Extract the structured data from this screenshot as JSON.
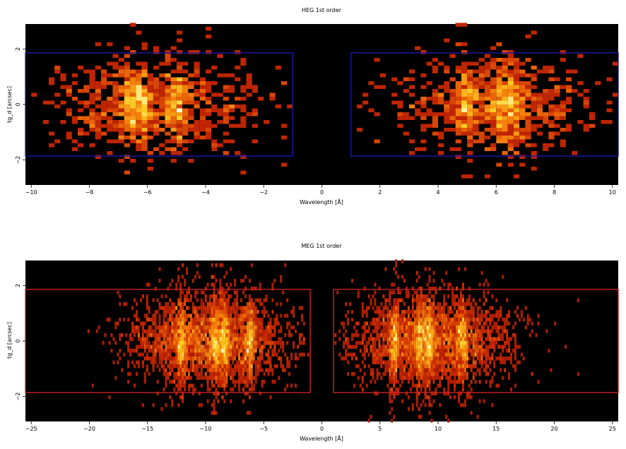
{
  "chart_data": [
    {
      "type": "heatmap",
      "title": "HEG 1st order",
      "xlabel": "Wavelength [Å]",
      "ylabel": "tg_d [arcsec]",
      "xlim": [
        -10.2,
        10.2
      ],
      "ylim": [
        -2.9,
        2.9
      ],
      "xticks": [
        -10,
        -8,
        -6,
        -4,
        -2,
        0,
        2,
        4,
        6,
        8,
        10
      ],
      "yticks": [
        -2,
        0,
        2
      ],
      "grid": false,
      "background": "#000000",
      "region_color": "#1a1aa8",
      "regions": [
        {
          "x": [
            -10.2,
            -1.0
          ],
          "y": [
            -1.86,
            1.86
          ]
        },
        {
          "x": [
            1.0,
            10.2
          ],
          "y": [
            -1.86,
            1.86
          ]
        }
      ],
      "emission_lines": [
        -6.6,
        -6.2,
        -5.0,
        6.6,
        6.2,
        5.0
      ],
      "bin": [
        0.2,
        0.14
      ]
    },
    {
      "type": "heatmap",
      "title": "MEG 1st order",
      "xlabel": "Wavelength [Å]",
      "ylabel": "tg_d [arcsec]",
      "xlim": [
        -25.5,
        25.5
      ],
      "ylim": [
        -2.9,
        2.9
      ],
      "xticks": [
        -25,
        -20,
        -15,
        -10,
        -5,
        0,
        5,
        10,
        15,
        20,
        25
      ],
      "yticks": [
        -2,
        0,
        2
      ],
      "grid": false,
      "background": "#000000",
      "region_color": "#cc2222",
      "regions": [
        {
          "x": [
            -25.5,
            -1.0
          ],
          "y": [
            -1.86,
            1.86
          ]
        },
        {
          "x": [
            1.0,
            25.5
          ],
          "y": [
            -1.86,
            1.86
          ]
        }
      ],
      "emission_lines": [
        -12.1,
        -9.2,
        -8.4,
        -6.2,
        6.2,
        8.4,
        9.2,
        12.1
      ],
      "bin": [
        0.18,
        0.14
      ]
    }
  ]
}
